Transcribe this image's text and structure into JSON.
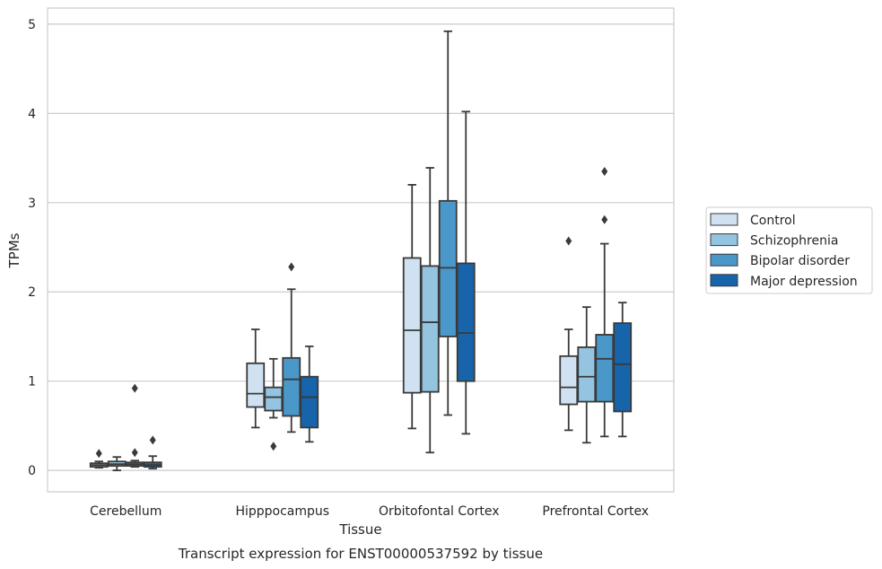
{
  "caption": "Transcript expression for ENST00000537592 by tissue",
  "chart_data": {
    "type": "box",
    "xlabel": "Tissue",
    "ylabel": "TPMs",
    "ylim": [
      -0.24,
      5.18
    ],
    "yticks": [
      0,
      1,
      2,
      3,
      4,
      5
    ],
    "grid": "horizontal",
    "legend_position": "right",
    "categories": [
      "Cerebellum",
      "Hipppocampus",
      "Orbitofontal Cortex",
      "Prefrontal Cortex"
    ],
    "series": [
      {
        "name": "Control",
        "color": "#d0e1f2",
        "boxes": [
          {
            "whislo": 0.03,
            "q1": 0.04,
            "med": 0.06,
            "q3": 0.08,
            "whishi": 0.1,
            "fliers": [
              0.19
            ]
          },
          {
            "whislo": 0.48,
            "q1": 0.71,
            "med": 0.86,
            "q3": 1.2,
            "whishi": 1.58,
            "fliers": []
          },
          {
            "whislo": 0.47,
            "q1": 0.87,
            "med": 1.57,
            "q3": 2.38,
            "whishi": 3.2,
            "fliers": []
          },
          {
            "whislo": 0.45,
            "q1": 0.74,
            "med": 0.93,
            "q3": 1.28,
            "whishi": 1.58,
            "fliers": [
              2.57
            ]
          }
        ]
      },
      {
        "name": "Schizophrenia",
        "color": "#94c4df",
        "boxes": [
          {
            "whislo": 0.0,
            "q1": 0.05,
            "med": 0.07,
            "q3": 0.1,
            "whishi": 0.15,
            "fliers": []
          },
          {
            "whislo": 0.59,
            "q1": 0.67,
            "med": 0.82,
            "q3": 0.93,
            "whishi": 1.25,
            "fliers": [
              0.27
            ]
          },
          {
            "whislo": 0.2,
            "q1": 0.88,
            "med": 1.66,
            "q3": 2.29,
            "whishi": 3.39,
            "fliers": []
          },
          {
            "whislo": 0.31,
            "q1": 0.77,
            "med": 1.05,
            "q3": 1.38,
            "whishi": 1.83,
            "fliers": []
          }
        ]
      },
      {
        "name": "Bipolar disorder",
        "color": "#4a98c9",
        "boxes": [
          {
            "whislo": 0.04,
            "q1": 0.05,
            "med": 0.07,
            "q3": 0.09,
            "whishi": 0.11,
            "fliers": [
              0.2,
              0.92
            ]
          },
          {
            "whislo": 0.43,
            "q1": 0.61,
            "med": 1.02,
            "q3": 1.26,
            "whishi": 2.03,
            "fliers": [
              2.28
            ]
          },
          {
            "whislo": 0.62,
            "q1": 1.5,
            "med": 2.27,
            "q3": 3.02,
            "whishi": 4.92,
            "fliers": []
          },
          {
            "whislo": 0.38,
            "q1": 0.77,
            "med": 1.25,
            "q3": 1.52,
            "whishi": 2.54,
            "fliers": [
              2.81,
              3.35
            ]
          }
        ]
      },
      {
        "name": "Major depression",
        "color": "#1764ab",
        "boxes": [
          {
            "whislo": 0.02,
            "q1": 0.04,
            "med": 0.06,
            "q3": 0.09,
            "whishi": 0.16,
            "fliers": [
              0.34
            ]
          },
          {
            "whislo": 0.32,
            "q1": 0.48,
            "med": 0.82,
            "q3": 1.05,
            "whishi": 1.39,
            "fliers": []
          },
          {
            "whislo": 0.41,
            "q1": 1.0,
            "med": 1.54,
            "q3": 2.32,
            "whishi": 4.02,
            "fliers": []
          },
          {
            "whislo": 0.38,
            "q1": 0.66,
            "med": 1.19,
            "q3": 1.65,
            "whishi": 1.88,
            "fliers": []
          }
        ]
      }
    ]
  }
}
